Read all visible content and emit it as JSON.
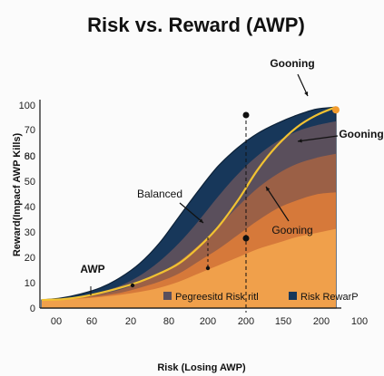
{
  "chart_data": {
    "type": "area",
    "title": "Risk vs. Reward (AWP)",
    "xlabel": "Risk (Losing AWP)",
    "ylabel": "Reward(Impacf AWP Kills)",
    "x_tick_labels": [
      "00",
      "60",
      "20",
      "80",
      "200",
      "200",
      "150",
      "200",
      "100"
    ],
    "y_tick_labels": [
      "0",
      "10",
      "20",
      "30",
      "40",
      "50",
      "60",
      "70",
      "80",
      "100"
    ],
    "ylim": [
      0,
      100
    ],
    "grid": false,
    "legend_placement": "bottom-right",
    "legend": [
      {
        "label": "Pegreesitd Risk ritl",
        "color": "#5a4f5c"
      },
      {
        "label": "Risk RewarP",
        "color": "#17375a"
      }
    ],
    "series": [
      {
        "name": "Risk RewarP",
        "color": "#17375a",
        "values": [
          4,
          5,
          7,
          10,
          15,
          22,
          32,
          45,
          58,
          70,
          79,
          86,
          91,
          95,
          98,
          99
        ]
      },
      {
        "name": "Pegreesitd Risk ritl",
        "color": "#5a4f5c",
        "values": [
          4,
          4.5,
          6,
          8,
          11,
          16,
          23,
          32,
          43,
          55,
          66,
          75,
          82,
          87,
          90,
          92
        ]
      },
      {
        "values": [
          4,
          4.5,
          5.5,
          7,
          9,
          12.5,
          17,
          23,
          31,
          40,
          50,
          59,
          66,
          71,
          74,
          76
        ]
      },
      {
        "values": [
          4,
          4.3,
          5,
          6,
          7.5,
          10,
          13,
          17,
          23,
          29,
          36,
          43,
          49,
          53,
          56,
          57
        ]
      },
      {
        "values": [
          4,
          4.2,
          4.7,
          5.5,
          6.5,
          8,
          10,
          13,
          17,
          21,
          25,
          29,
          32,
          35,
          37,
          39
        ]
      }
    ],
    "highlight_line": {
      "color": "#f1c232",
      "values": [
        4,
        4.3,
        5.5,
        7.5,
        10,
        13,
        17,
        22,
        30,
        40,
        53,
        68,
        80,
        89,
        95,
        99
      ]
    },
    "annotations": [
      {
        "text": "Gooning",
        "style": "bold"
      },
      {
        "text": "Gooning",
        "style": "bold"
      },
      {
        "text": "Balanced",
        "style": "normal"
      },
      {
        "text": "Gooning",
        "style": "normal"
      },
      {
        "text": "AWP",
        "style": "bold"
      }
    ]
  }
}
